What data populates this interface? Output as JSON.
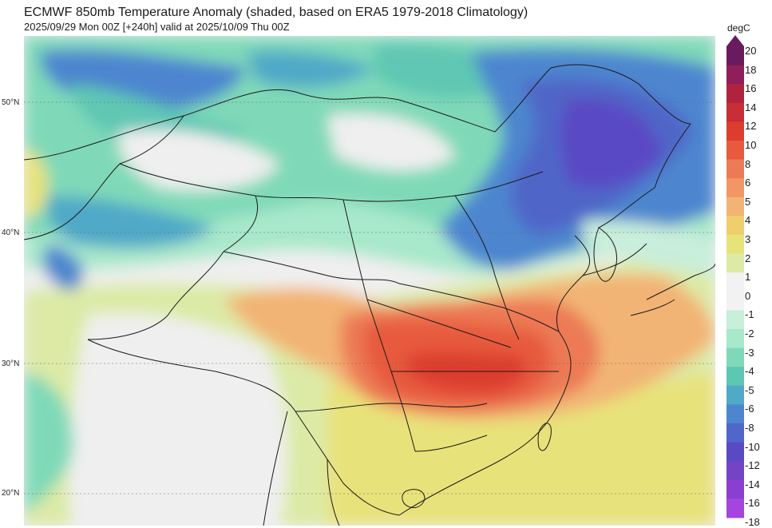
{
  "header": {
    "title": "ECMWF 850mb Temperature Anomaly (shaded, based on ERA5 1979-2018 Climatology)",
    "subtitle": "2025/09/29 Mon 00Z [+240h] valid at 2025/10/09 Thu 00Z"
  },
  "map": {
    "lat_labels": [
      "50°N",
      "40°N",
      "30°N",
      "20°N"
    ]
  },
  "colorbar": {
    "unit": "degC",
    "ticks": [
      "20",
      "18",
      "16",
      "14",
      "12",
      "10",
      "8",
      "6",
      "5",
      "4",
      "3",
      "2",
      "1",
      "0",
      "-1",
      "-2",
      "-3",
      "-4",
      "-5",
      "-6",
      "-8",
      "-10",
      "-12",
      "-14",
      "-16",
      "-18"
    ],
    "colors": [
      "#6a1b5e",
      "#8e1f5a",
      "#b0233f",
      "#c92d36",
      "#dc3d2e",
      "#e75a3d",
      "#ec7a55",
      "#f19765",
      "#f2b474",
      "#efcf6d",
      "#e8e27a",
      "#dceaa6",
      "#f2f2f2",
      "#f2f2f2",
      "#c8eedc",
      "#a8e8cb",
      "#7fd9b8",
      "#5ec7b3",
      "#4fa9c7",
      "#4d86cf",
      "#5066c8",
      "#5a49c4",
      "#7444c4",
      "#8b3fd0",
      "#a545e0"
    ]
  }
}
